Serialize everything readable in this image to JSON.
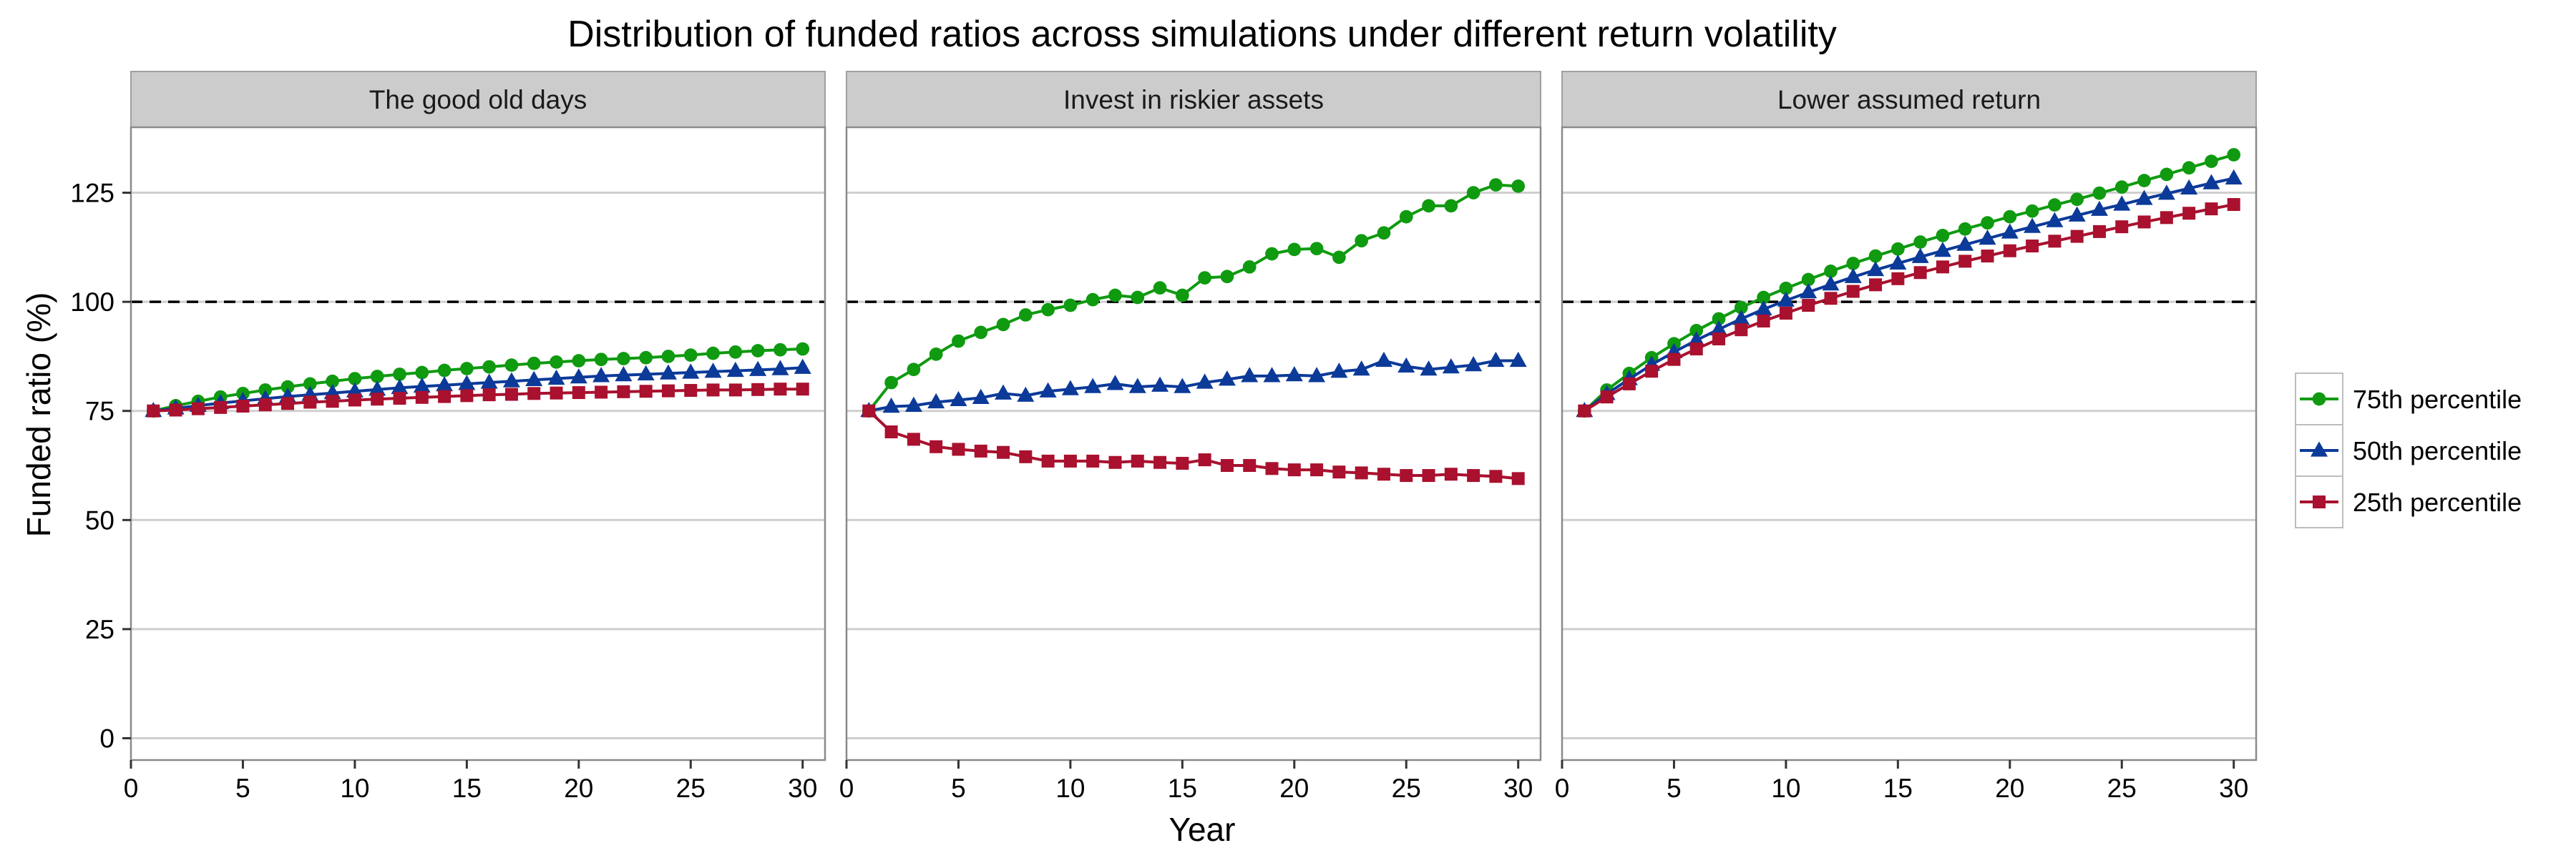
{
  "chart_data": {
    "type": "line",
    "title": "Distribution of funded ratios across simulations under different return volatility",
    "xlabel": "Year",
    "ylabel": "Funded ratio (%)",
    "xlim": [
      0,
      31
    ],
    "ylim": [
      -5,
      140
    ],
    "xticks": [
      0,
      5,
      10,
      15,
      20,
      25,
      30
    ],
    "yticks": [
      0,
      25,
      50,
      75,
      100,
      125
    ],
    "reference_line": 100,
    "grid": true,
    "legend_position": "right",
    "legend": [
      {
        "key": "p75",
        "label": "75th percentile",
        "color": "#0f9a10",
        "marker": "circle"
      },
      {
        "key": "p50",
        "label": "50th percentile",
        "color": "#0c3a99",
        "marker": "triangle"
      },
      {
        "key": "p25",
        "label": "25th percentile",
        "color": "#a9112e",
        "marker": "square"
      }
    ],
    "x": [
      1,
      2,
      3,
      4,
      5,
      6,
      7,
      8,
      9,
      10,
      11,
      12,
      13,
      14,
      15,
      16,
      17,
      18,
      19,
      20,
      21,
      22,
      23,
      24,
      25,
      26,
      27,
      28,
      29,
      30
    ],
    "panels": [
      {
        "label": "The good old days",
        "series": {
          "p75": [
            75,
            76.2,
            77.2,
            78.2,
            79,
            79.8,
            80.5,
            81.2,
            81.8,
            82.4,
            82.9,
            83.4,
            83.8,
            84.3,
            84.7,
            85.1,
            85.5,
            85.9,
            86.2,
            86.5,
            86.8,
            87,
            87.2,
            87.5,
            87.8,
            88.2,
            88.5,
            88.8,
            89,
            89.2
          ],
          "p50": [
            75,
            75.6,
            76.2,
            76.8,
            77.3,
            77.8,
            78.3,
            78.7,
            79.1,
            79.5,
            79.9,
            80.3,
            80.6,
            80.9,
            81.2,
            81.5,
            81.8,
            82.1,
            82.4,
            82.7,
            83,
            83.2,
            83.4,
            83.6,
            83.8,
            84,
            84.2,
            84.4,
            84.6,
            84.9
          ],
          "p25": [
            75,
            75.2,
            75.5,
            75.8,
            76.1,
            76.4,
            76.7,
            77,
            77.2,
            77.5,
            77.7,
            77.9,
            78.1,
            78.3,
            78.5,
            78.7,
            78.8,
            79,
            79.1,
            79.2,
            79.3,
            79.4,
            79.5,
            79.6,
            79.7,
            79.8,
            79.8,
            79.9,
            80,
            80
          ]
        }
      },
      {
        "label": "Invest in riskier assets",
        "series": {
          "p75": [
            75,
            81.5,
            84.5,
            88,
            91,
            93,
            94.8,
            97,
            98.2,
            99.2,
            100.5,
            101.5,
            101,
            103.2,
            101.5,
            105.5,
            105.8,
            108,
            111,
            112,
            112.2,
            110.2,
            114,
            115.8,
            119.5,
            122,
            122,
            125,
            126.8,
            126.5
          ],
          "p50": [
            75,
            76,
            76.2,
            77,
            77.5,
            78,
            79,
            78.5,
            79.5,
            80,
            80.5,
            81.2,
            80.5,
            80.8,
            80.5,
            81.5,
            82.2,
            83,
            83,
            83.2,
            83,
            84,
            84.5,
            86.5,
            85.2,
            84.5,
            85,
            85.5,
            86.5,
            86.5
          ],
          "p25": [
            75,
            70.2,
            68.5,
            66.8,
            66.2,
            65.8,
            65.5,
            64.5,
            63.5,
            63.5,
            63.5,
            63.2,
            63.5,
            63.2,
            63,
            63.8,
            62.5,
            62.5,
            61.8,
            61.5,
            61.5,
            61,
            60.8,
            60.5,
            60.2,
            60.2,
            60.5,
            60.2,
            60,
            59.5
          ]
        }
      },
      {
        "label": "Lower assumed return",
        "series": {
          "p75": [
            75,
            79.8,
            83.6,
            87.2,
            90.4,
            93.4,
            96.1,
            98.7,
            101,
            103.1,
            105.1,
            107,
            108.8,
            110.5,
            112.1,
            113.7,
            115.2,
            116.7,
            118.1,
            119.5,
            120.8,
            122.2,
            123.5,
            124.9,
            126.3,
            127.8,
            129.2,
            130.7,
            132.2,
            133.7
          ],
          "p50": [
            75,
            78.9,
            82.3,
            85.6,
            88.5,
            91.2,
            93.7,
            96.1,
            98.3,
            100.3,
            102.2,
            104,
            105.7,
            107.3,
            108.8,
            110.3,
            111.7,
            113.1,
            114.5,
            115.9,
            117.2,
            118.5,
            119.8,
            121.1,
            122.3,
            123.6,
            124.8,
            126,
            127.2,
            128.3
          ],
          "p25": [
            75,
            78.2,
            81.2,
            84.1,
            86.8,
            89.2,
            91.5,
            93.6,
            95.6,
            97.4,
            99.2,
            100.8,
            102.4,
            103.9,
            105.3,
            106.7,
            108,
            109.3,
            110.5,
            111.7,
            112.8,
            113.9,
            115,
            116.1,
            117.2,
            118.3,
            119.3,
            120.3,
            121.3,
            122.3
          ]
        }
      }
    ]
  }
}
